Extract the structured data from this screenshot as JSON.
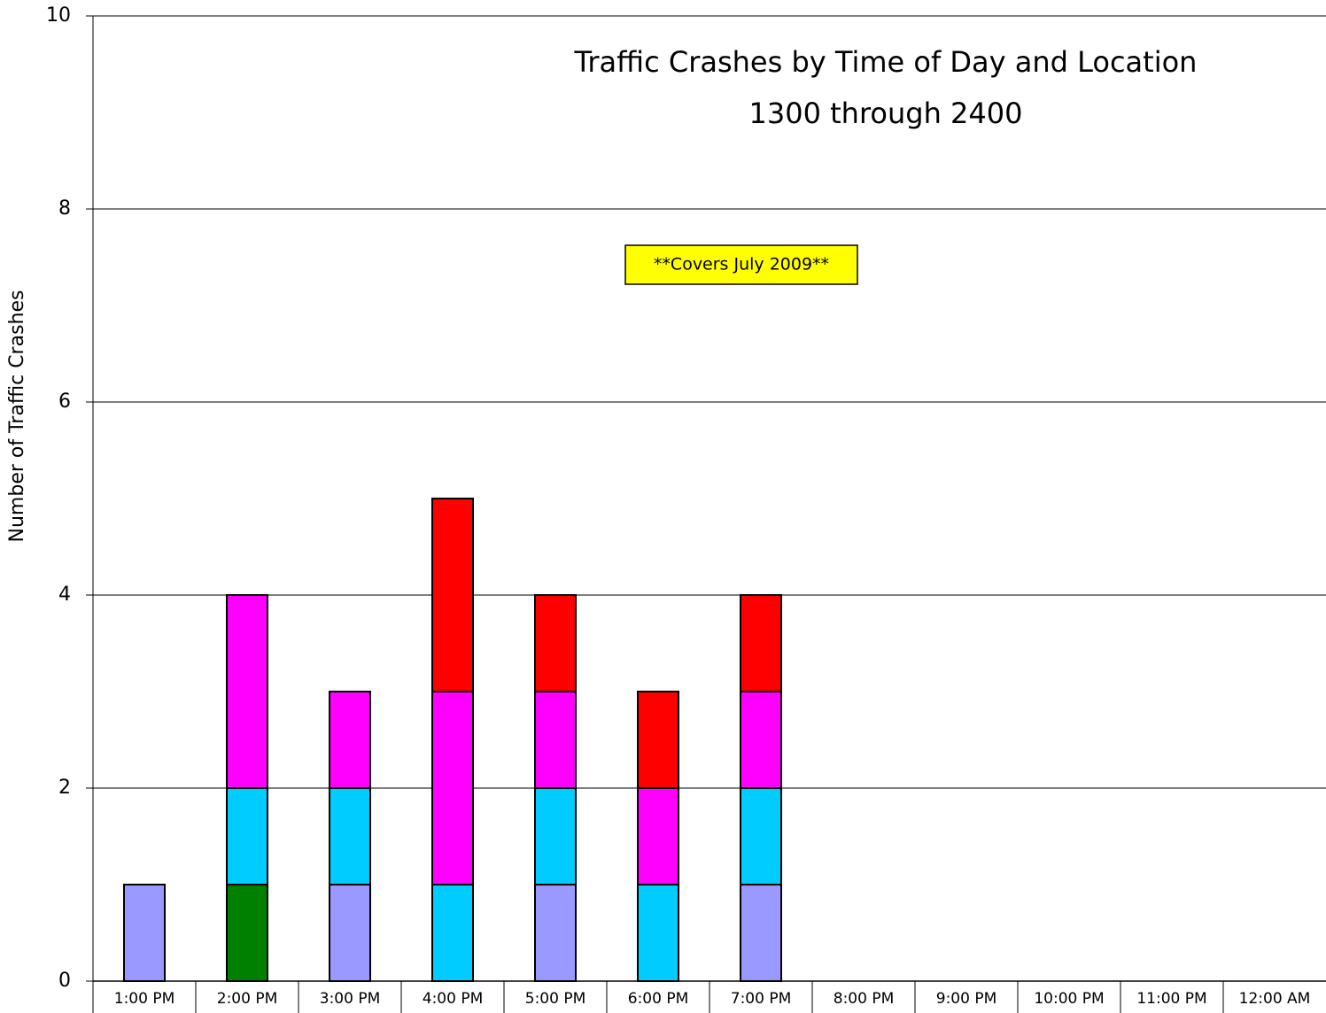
{
  "chart_data": {
    "type": "bar",
    "stacked": true,
    "title": "Traffic Crashes by Time of Day and Location",
    "subtitle": "1300 through 2400",
    "annotation": "**Covers July 2009**",
    "y_label": "Number of Traffic Crashes",
    "categories": [
      "1:00 PM",
      "2:00 PM",
      "3:00 PM",
      "4:00 PM",
      "5:00 PM",
      "6:00 PM",
      "7:00 PM",
      "8:00 PM",
      "9:00 PM",
      "10:00 PM",
      "11:00 PM",
      "12:00 AM"
    ],
    "series": [
      {
        "color": "#9999ff",
        "values": [
          1,
          0,
          1,
          0,
          1,
          0,
          1,
          0,
          0,
          0,
          0,
          0
        ]
      },
      {
        "color": "#008000",
        "values": [
          0,
          1,
          0,
          0,
          0,
          0,
          0,
          0,
          0,
          0,
          0,
          0
        ]
      },
      {
        "color": "#00ccff",
        "values": [
          0,
          1,
          1,
          1,
          1,
          1,
          1,
          0,
          0,
          0,
          0,
          0
        ]
      },
      {
        "color": "#ff00ff",
        "values": [
          0,
          2,
          1,
          2,
          1,
          1,
          1,
          0,
          0,
          0,
          0,
          0
        ]
      },
      {
        "color": "#ff0000",
        "values": [
          0,
          0,
          0,
          2,
          1,
          1,
          1,
          0,
          0,
          0,
          0,
          0
        ]
      }
    ],
    "ylim": [
      0,
      10
    ],
    "yticks": [
      0,
      2,
      4,
      6,
      8,
      10
    ],
    "grid": true
  }
}
